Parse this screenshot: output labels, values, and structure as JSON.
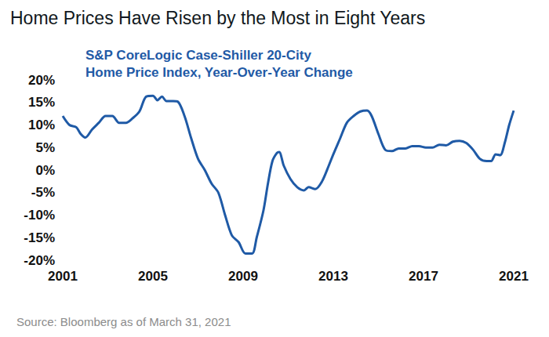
{
  "chart_data": {
    "type": "line",
    "title": "Home Prices Have Risen by the Most in Eight Years",
    "subtitle": [
      "S&P CoreLogic Case-Shiller 20-City",
      "Home Price Index, Year-Over-Year Change"
    ],
    "source": "Source: Bloomberg as of March 31, 2021",
    "color": "#1f5aa6",
    "grid": false,
    "x": [
      2001.0,
      2001.3,
      2001.6,
      2001.8,
      2002.0,
      2002.3,
      2002.6,
      2002.9,
      2003.2,
      2003.5,
      2003.8,
      2004.1,
      2004.4,
      2004.7,
      2005.0,
      2005.2,
      2005.4,
      2005.6,
      2005.9,
      2006.1,
      2006.4,
      2006.7,
      2007.0,
      2007.3,
      2007.6,
      2007.9,
      2008.2,
      2008.5,
      2008.8,
      2009.1,
      2009.4,
      2009.6,
      2009.9,
      2010.1,
      2010.3,
      2010.5,
      2010.6,
      2010.8,
      2011.1,
      2011.4,
      2011.7,
      2011.9,
      2012.2,
      2012.5,
      2012.8,
      2013.0,
      2013.3,
      2013.6,
      2013.9,
      2014.2,
      2014.5,
      2014.7,
      2015.0,
      2015.3,
      2015.6,
      2015.9,
      2016.2,
      2016.5,
      2016.8,
      2017.1,
      2017.4,
      2017.7,
      2018.0,
      2018.3,
      2018.6,
      2018.9,
      2019.2,
      2019.5,
      2019.8,
      2020.0,
      2020.2,
      2020.4,
      2020.6,
      2020.8,
      2021.0
    ],
    "values": [
      12,
      10,
      9.5,
      8,
      7.2,
      9,
      10.5,
      12,
      12,
      10.5,
      10.5,
      11.5,
      13,
      16.3,
      16.5,
      15.5,
      16.3,
      15.3,
      15.3,
      15.2,
      12,
      7,
      2.5,
      0,
      -3,
      -5,
      -10,
      -14.5,
      -16,
      -18.5,
      -18.5,
      -15,
      -9,
      -3,
      2,
      3.8,
      4,
      1,
      -2,
      -3.8,
      -4.5,
      -3.8,
      -4.2,
      -2.5,
      1,
      3.5,
      7,
      10.5,
      12,
      13,
      13.2,
      12,
      8,
      4.5,
      4.2,
      4.8,
      4.8,
      5.3,
      5.3,
      5,
      5,
      5.6,
      5.5,
      6.3,
      6.5,
      6,
      4.5,
      2.5,
      2,
      2,
      3.5,
      3.3,
      6,
      10,
      13.2
    ],
    "xlim": [
      2001,
      2021
    ],
    "xticks": [
      2001,
      2005,
      2009,
      2013,
      2017,
      2021
    ],
    "ylim": [
      -20,
      20
    ],
    "yticks": [
      {
        "value": -20,
        "label": "-20%"
      },
      {
        "value": -15,
        "label": "-15%"
      },
      {
        "value": -10,
        "label": "-10%"
      },
      {
        "value": -5,
        "label": "-5%"
      },
      {
        "value": 0,
        "label": "0%"
      },
      {
        "value": 5,
        "label": "5%"
      },
      {
        "value": 10,
        "label": "10%"
      },
      {
        "value": 15,
        "label": "15%"
      },
      {
        "value": 20,
        "label": "20%"
      }
    ]
  }
}
